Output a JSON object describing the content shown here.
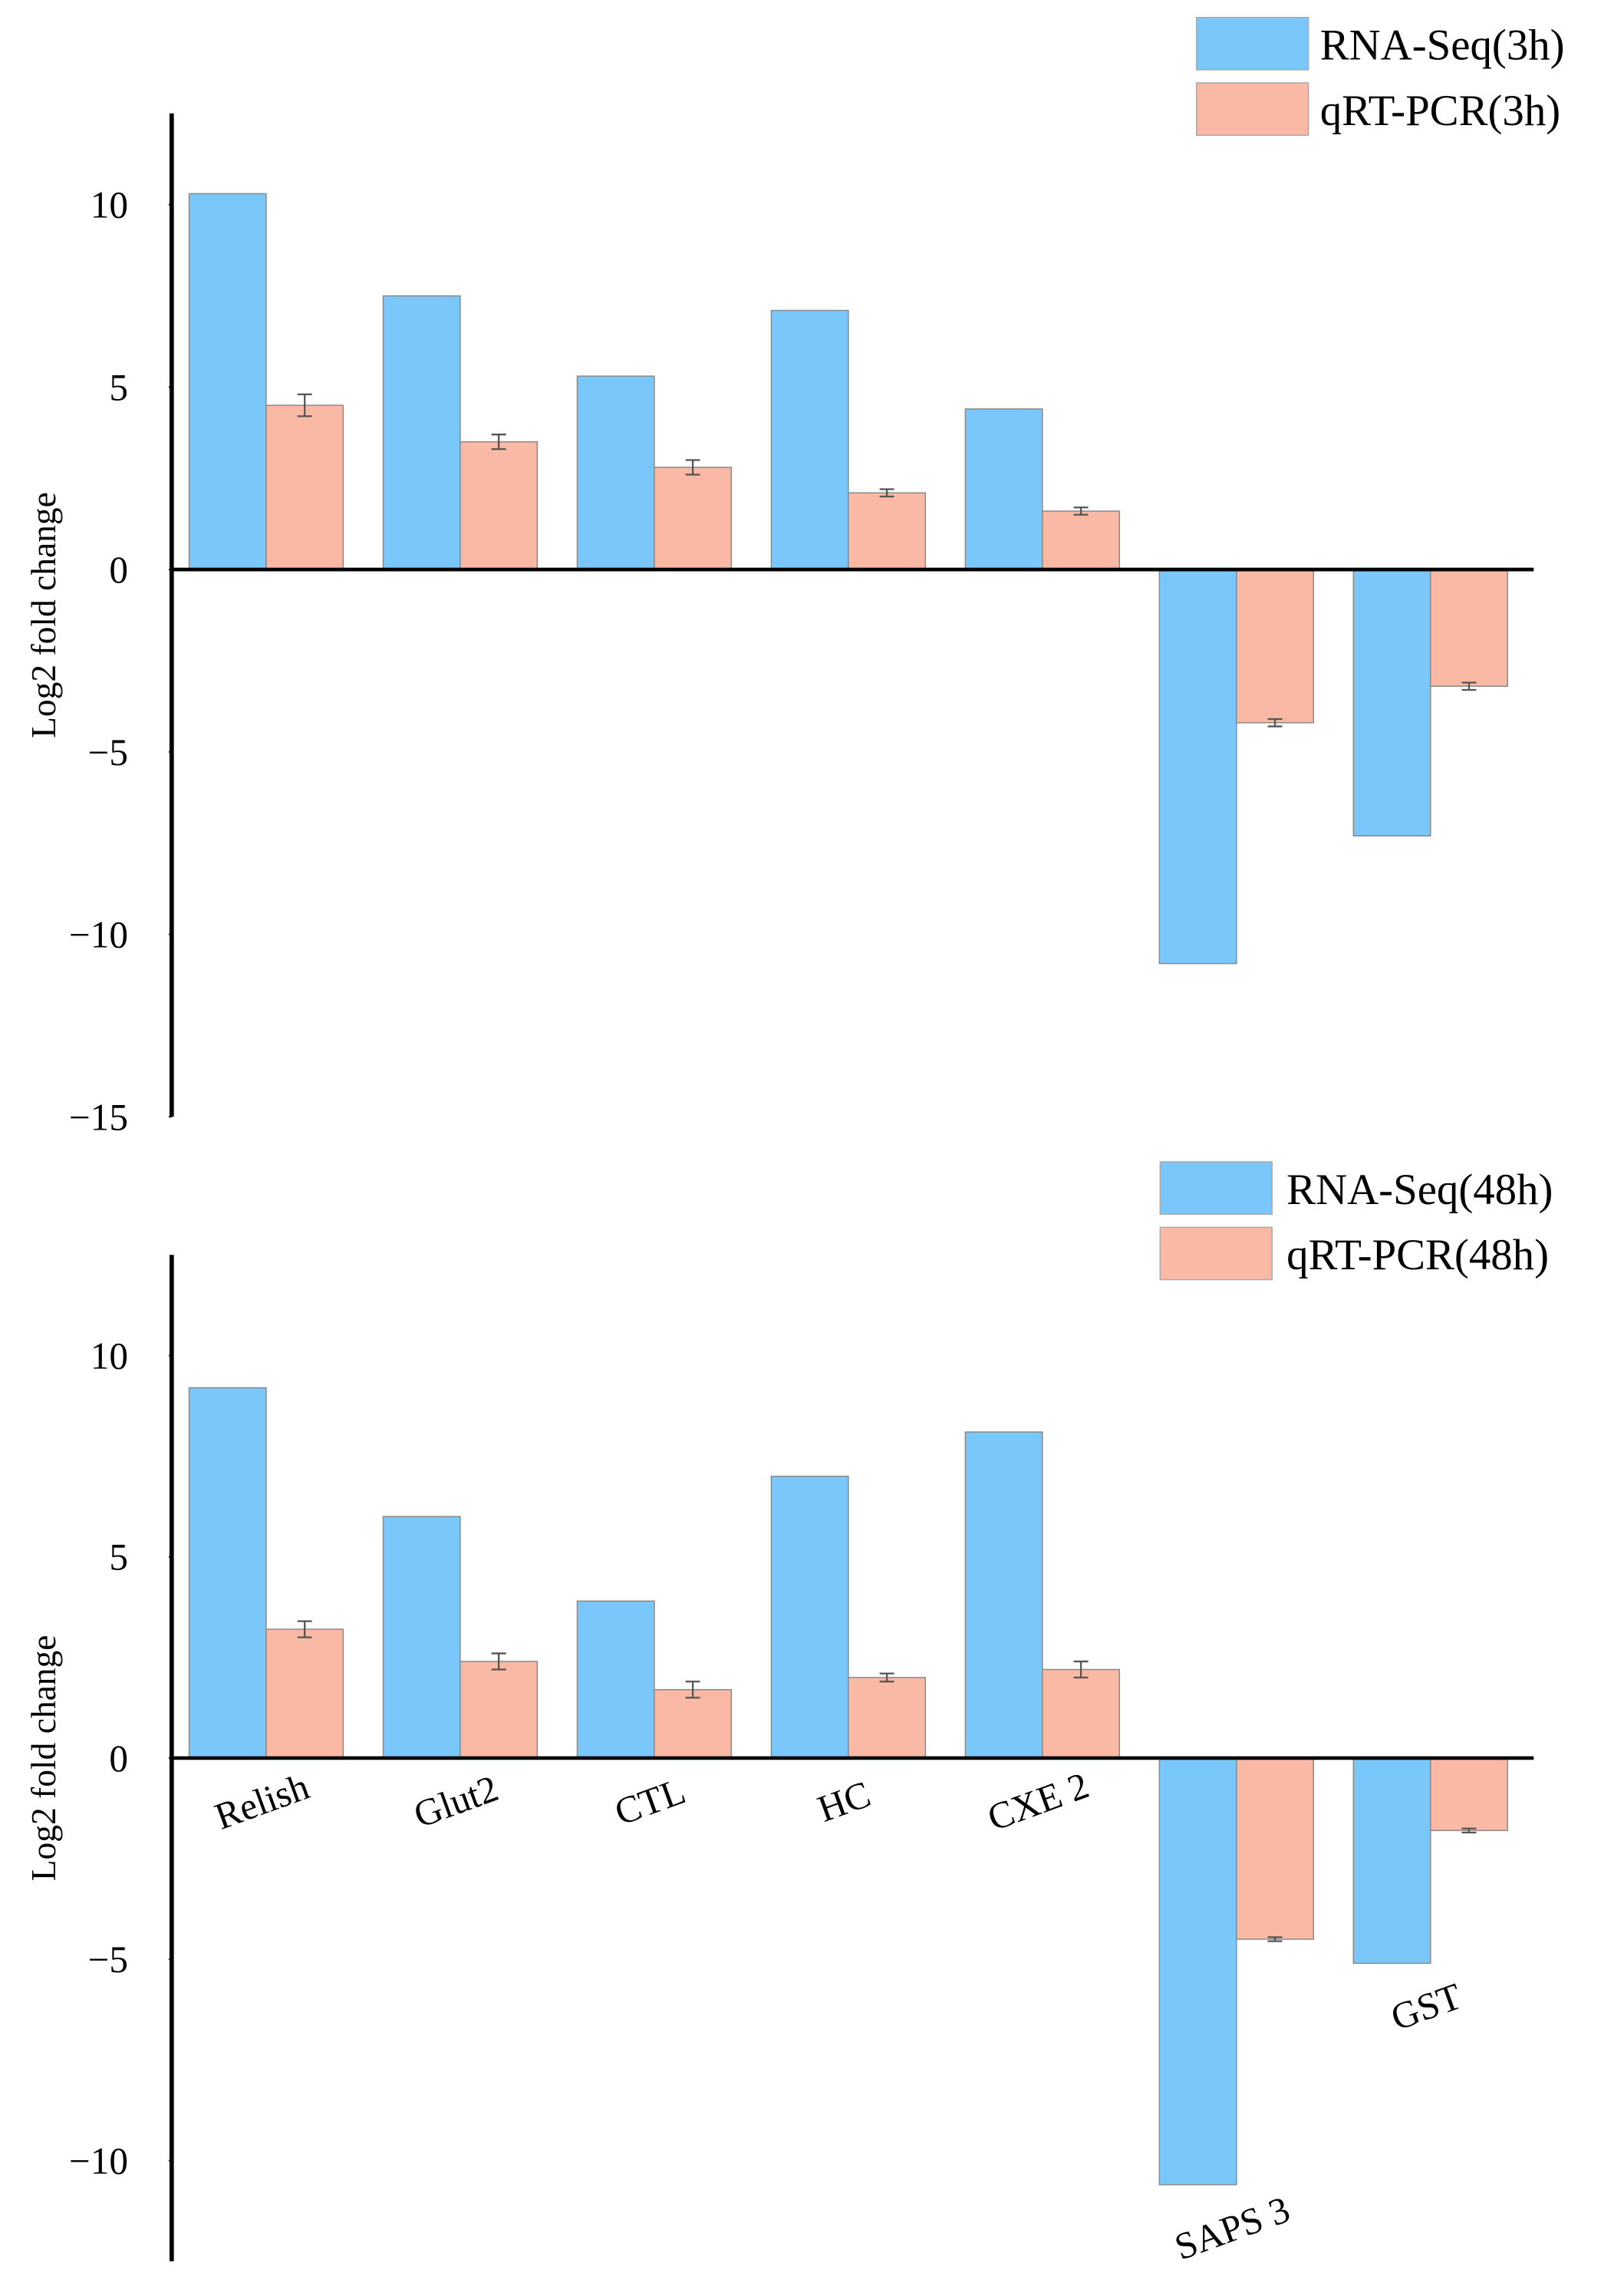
{
  "chart_data": [
    {
      "type": "bar",
      "categories": [
        null,
        null,
        null,
        null,
        null,
        null,
        null
      ],
      "series": [
        {
          "name": "RNA-Seq(3h)",
          "color": "#79c7fb",
          "values": [
            10.3,
            7.5,
            5.3,
            7.1,
            4.4,
            -10.8,
            -7.3
          ]
        },
        {
          "name": "qRT-PCR(3h)",
          "color": "#f9b9a5",
          "values": [
            4.5,
            3.5,
            2.8,
            2.1,
            1.6,
            -4.2,
            -3.2
          ],
          "errors": [
            0.3,
            0.2,
            0.2,
            0.1,
            0.1,
            0.1,
            0.1
          ]
        }
      ],
      "y_label": "Log2 fold change",
      "ylim": [
        -15,
        12.5
      ],
      "yticks": [
        {
          "value": -15,
          "label": "−15"
        },
        {
          "value": -10,
          "label": "−10"
        },
        {
          "value": -5,
          "label": "−5"
        },
        0,
        5,
        10
      ],
      "legend": "upper right"
    },
    {
      "type": "bar",
      "categories": [
        "Relish",
        "Glut2",
        "CTL",
        "HC",
        "CXE 2",
        "SAPS 3",
        "GST"
      ],
      "series": [
        {
          "name": "RNA-Seq(48h)",
          "color": "#79c7fb",
          "values": [
            9.2,
            6.0,
            3.9,
            7.0,
            8.1,
            -10.6,
            -5.1
          ]
        },
        {
          "name": "qRT-PCR(48h)",
          "color": "#f9b9a5",
          "values": [
            3.2,
            2.4,
            1.7,
            2.0,
            2.2,
            -4.5,
            -1.8
          ],
          "errors": [
            0.2,
            0.2,
            0.2,
            0.1,
            0.2,
            0.05,
            0.05
          ]
        }
      ],
      "y_label": "Log2 fold change",
      "ylim": [
        -12.5,
        12.5
      ],
      "yticks": [
        {
          "value": -10,
          "label": "−10"
        },
        {
          "value": -5,
          "label": "−5"
        },
        0,
        5,
        10
      ],
      "legend": "upper right"
    }
  ]
}
